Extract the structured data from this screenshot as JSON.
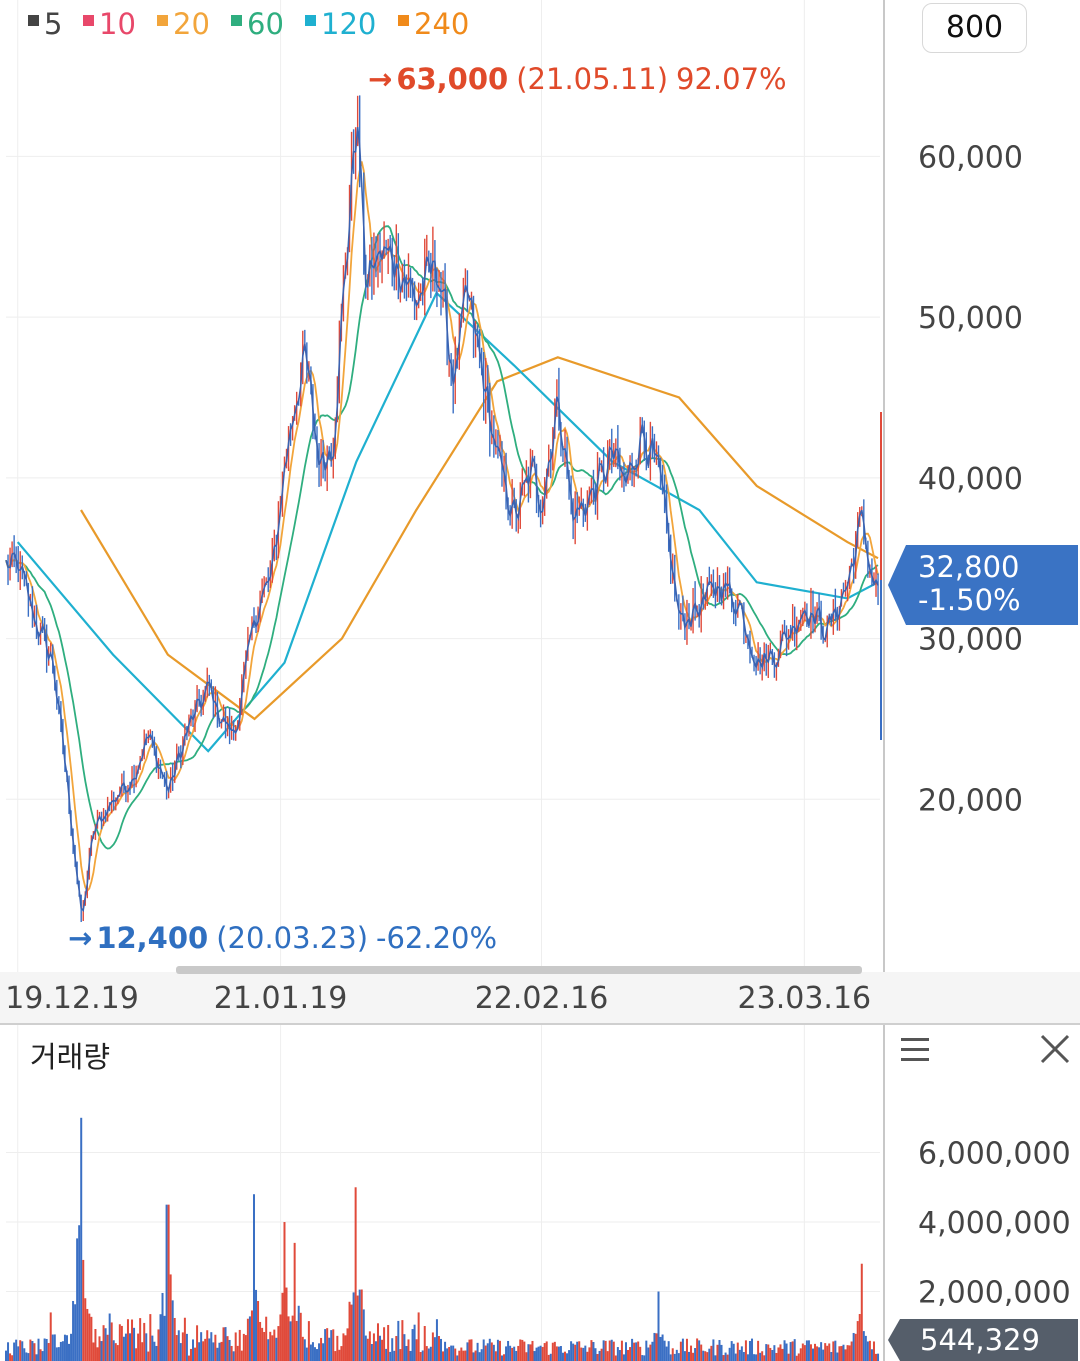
{
  "legend": [
    {
      "label": "5",
      "color": "#444444"
    },
    {
      "label": "10",
      "color": "#e8486a"
    },
    {
      "label": "20",
      "color": "#f2a53b"
    },
    {
      "label": "60",
      "color": "#2fae7f"
    },
    {
      "label": "120",
      "color": "#1fb0d0"
    },
    {
      "label": "240",
      "color": "#f08a1a"
    }
  ],
  "interval_label": "800",
  "max_annotation": {
    "price": "63,000",
    "date": "(21.05.11)",
    "pct": "92.07%",
    "arrow": "→",
    "color": "#e04a2a"
  },
  "min_annotation": {
    "price": "12,400",
    "date": "(20.03.23)",
    "pct": "-62.20%",
    "arrow": "→",
    "color": "#2f6fc0"
  },
  "current": {
    "price": "32,800",
    "change": "-1.50%",
    "color": "#3a73c4"
  },
  "volume_panel": {
    "title": "거래량",
    "current_volume": "544,329",
    "tag_color": "#555e6a"
  },
  "chart_data": [
    {
      "type": "line",
      "series_kind": "price candlestick with moving averages",
      "ylim": [
        10000,
        66000
      ],
      "y_ticks": [
        "60,000",
        "50,000",
        "40,000",
        "30,000",
        "20,000"
      ],
      "y_tick_values": [
        60000,
        50000,
        40000,
        30000,
        20000
      ],
      "x_tick_labels": [
        "19.12.19",
        "21.01.19",
        "22.02.16",
        "23.03.16"
      ],
      "price_path": [
        [
          "19.12.19",
          34500
        ],
        [
          "20.01.15",
          31000
        ],
        [
          "20.02.10",
          28500
        ],
        [
          "20.03.01",
          21000
        ],
        [
          "20.03.23",
          12400
        ],
        [
          "20.04.10",
          18000
        ],
        [
          "20.05.10",
          20000
        ],
        [
          "20.06.10",
          21500
        ],
        [
          "20.07.01",
          24000
        ],
        [
          "20.08.01",
          20500
        ],
        [
          "20.09.01",
          24500
        ],
        [
          "20.10.01",
          27000
        ],
        [
          "20.10.20",
          25000
        ],
        [
          "20.11.10",
          24000
        ],
        [
          "20.12.10",
          31500
        ],
        [
          "21.01.05",
          34000
        ],
        [
          "21.01.25",
          41000
        ],
        [
          "21.02.10",
          45000
        ],
        [
          "21.02.25",
          47500
        ],
        [
          "21.03.15",
          41000
        ],
        [
          "21.04.05",
          42000
        ],
        [
          "21.04.20",
          50500
        ],
        [
          "21.05.11",
          63000
        ],
        [
          "21.05.25",
          52000
        ],
        [
          "21.06.15",
          54000
        ],
        [
          "21.07.10",
          53500
        ],
        [
          "21.08.10",
          51000
        ],
        [
          "21.09.10",
          53500
        ],
        [
          "21.10.05",
          46000
        ],
        [
          "21.10.25",
          51500
        ],
        [
          "21.11.15",
          47000
        ],
        [
          "21.12.10",
          41000
        ],
        [
          "22.01.05",
          37500
        ],
        [
          "22.02.01",
          40500
        ],
        [
          "22.02.16",
          38500
        ],
        [
          "22.03.10",
          45000
        ],
        [
          "22.04.01",
          37500
        ],
        [
          "22.05.01",
          39000
        ],
        [
          "22.06.01",
          41500
        ],
        [
          "22.06.20",
          39500
        ],
        [
          "22.07.15",
          43000
        ],
        [
          "22.08.10",
          40000
        ],
        [
          "22.09.10",
          31000
        ],
        [
          "22.10.10",
          32000
        ],
        [
          "22.11.10",
          33500
        ],
        [
          "22.12.10",
          32000
        ],
        [
          "23.01.05",
          28500
        ],
        [
          "23.02.01",
          29000
        ],
        [
          "23.03.16",
          32000
        ],
        [
          "23.04.20",
          30500
        ],
        [
          "23.05.20",
          33500
        ],
        [
          "23.06.10",
          37500
        ],
        [
          "23.06.25",
          34000
        ],
        [
          "23.07.05",
          32800
        ]
      ],
      "ma_240": [
        [
          "20.03.23",
          38000
        ],
        [
          "20.08.01",
          29000
        ],
        [
          "20.12.10",
          25000
        ],
        [
          "21.04.20",
          30000
        ],
        [
          "21.08.10",
          38000
        ],
        [
          "21.12.10",
          46000
        ],
        [
          "22.03.10",
          47500
        ],
        [
          "22.09.10",
          45000
        ],
        [
          "23.01.05",
          39500
        ],
        [
          "23.05.20",
          36000
        ],
        [
          "23.07.05",
          35000
        ]
      ],
      "ma_120": [
        [
          "19.12.19",
          36000
        ],
        [
          "20.05.10",
          29000
        ],
        [
          "20.10.01",
          23000
        ],
        [
          "21.01.25",
          28500
        ],
        [
          "21.05.11",
          41000
        ],
        [
          "21.09.10",
          51500
        ],
        [
          "22.01.05",
          47000
        ],
        [
          "22.06.01",
          41000
        ],
        [
          "22.10.10",
          38000
        ],
        [
          "23.01.05",
          33500
        ],
        [
          "23.05.20",
          32500
        ],
        [
          "23.07.05",
          33500
        ]
      ]
    },
    {
      "type": "bar",
      "series_kind": "volume",
      "ylim": [
        0,
        7800000
      ],
      "y_ticks": [
        "6,000,000",
        "4,000,000",
        "2,000,000"
      ],
      "y_tick_values": [
        6000000,
        4000000,
        2000000
      ],
      "spikes": [
        [
          "20.03.23",
          7000000
        ],
        [
          "20.08.01",
          4500000
        ],
        [
          "20.12.10",
          4800000
        ],
        [
          "21.01.25",
          4000000
        ],
        [
          "21.05.11",
          5000000
        ],
        [
          "21.02.10",
          3400000
        ],
        [
          "23.06.10",
          2800000
        ],
        [
          "22.08.10",
          2000000
        ]
      ]
    }
  ]
}
